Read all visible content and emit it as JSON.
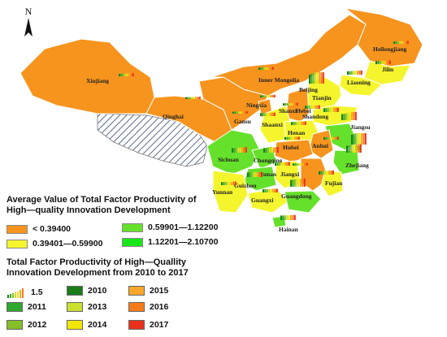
{
  "map": {
    "north_label": "N",
    "provinces": [
      {
        "name": "Xinjiang",
        "class": "c1",
        "values": [
          0.32,
          0.34,
          0.35,
          0.36,
          0.37,
          0.38,
          0.4,
          0.41
        ]
      },
      {
        "name": "Inner Mongolia",
        "class": "c1",
        "values": [
          0.3,
          0.31,
          0.33,
          0.35,
          0.36,
          0.37,
          0.38,
          0.39
        ]
      },
      {
        "name": "Heilongjiang",
        "class": "c1",
        "values": [
          0.3,
          0.32,
          0.33,
          0.34,
          0.35,
          0.36,
          0.37,
          0.38
        ]
      },
      {
        "name": "Jilin",
        "class": "c2",
        "values": [
          0.4,
          0.42,
          0.44,
          0.45,
          0.46,
          0.47,
          0.48,
          0.5
        ]
      },
      {
        "name": "Liaoning",
        "class": "c2",
        "values": [
          0.45,
          0.47,
          0.49,
          0.5,
          0.52,
          0.53,
          0.54,
          0.56
        ]
      },
      {
        "name": "Beijing",
        "class": "c4",
        "values": [
          1.2,
          1.3,
          1.4,
          1.45,
          1.5,
          1.55,
          1.6,
          1.65
        ]
      },
      {
        "name": "Tianjin",
        "class": "c2",
        "values": [
          0.5,
          0.52,
          0.54,
          0.55,
          0.56,
          0.57,
          0.58,
          0.59
        ]
      },
      {
        "name": "Qinghai",
        "class": "c1",
        "values": [
          0.25,
          0.26,
          0.27,
          0.28,
          0.29,
          0.3,
          0.31,
          0.32
        ]
      },
      {
        "name": "Gansu",
        "class": "c1",
        "values": [
          0.26,
          0.27,
          0.28,
          0.29,
          0.3,
          0.31,
          0.32,
          0.33
        ]
      },
      {
        "name": "Ningxia",
        "class": "c1",
        "values": [
          0.27,
          0.28,
          0.29,
          0.3,
          0.31,
          0.32,
          0.33,
          0.34
        ]
      },
      {
        "name": "Shaanxi",
        "class": "c2",
        "values": [
          0.4,
          0.41,
          0.42,
          0.43,
          0.44,
          0.45,
          0.46,
          0.47
        ]
      },
      {
        "name": "Shanxi",
        "class": "c1",
        "values": [
          0.3,
          0.31,
          0.32,
          0.33,
          0.34,
          0.35,
          0.36,
          0.37
        ]
      },
      {
        "name": "Hebei",
        "class": "c2",
        "values": [
          0.4,
          0.41,
          0.42,
          0.43,
          0.44,
          0.45,
          0.46,
          0.47
        ]
      },
      {
        "name": "Shandong",
        "class": "c2",
        "values": [
          0.5,
          0.52,
          0.54,
          0.55,
          0.56,
          0.57,
          0.58,
          0.59
        ]
      },
      {
        "name": "Henan",
        "class": "c2",
        "values": [
          0.4,
          0.41,
          0.42,
          0.43,
          0.44,
          0.45,
          0.46,
          0.48
        ]
      },
      {
        "name": "Jiangsu",
        "class": "c3",
        "values": [
          0.8,
          0.85,
          0.9,
          0.95,
          1.0,
          1.05,
          1.08,
          1.1
        ]
      },
      {
        "name": "Anhui",
        "class": "c1",
        "values": [
          0.33,
          0.34,
          0.35,
          0.36,
          0.37,
          0.38,
          0.39,
          0.39
        ]
      },
      {
        "name": "Hubei",
        "class": "c1",
        "values": [
          0.34,
          0.35,
          0.36,
          0.37,
          0.38,
          0.39,
          0.39,
          0.39
        ]
      },
      {
        "name": "Shanghai",
        "class": "c4",
        "values": [
          1.3,
          1.4,
          1.5,
          1.55,
          1.6,
          1.65,
          1.7,
          1.75
        ]
      },
      {
        "name": "Zhejiang",
        "class": "c3",
        "values": [
          0.9,
          0.95,
          1.0,
          1.02,
          1.05,
          1.08,
          1.1,
          1.12
        ]
      },
      {
        "name": "Sichuan",
        "class": "c3",
        "values": [
          0.6,
          0.62,
          0.64,
          0.66,
          0.68,
          0.7,
          0.72,
          0.74
        ]
      },
      {
        "name": "Chongqing",
        "class": "c3",
        "values": [
          0.6,
          0.63,
          0.65,
          0.67,
          0.69,
          0.71,
          0.73,
          0.75
        ]
      },
      {
        "name": "Hunan",
        "class": "c2",
        "values": [
          0.4,
          0.42,
          0.44,
          0.45,
          0.46,
          0.47,
          0.48,
          0.5
        ]
      },
      {
        "name": "Jiangxi",
        "class": "c1",
        "values": [
          0.3,
          0.31,
          0.32,
          0.33,
          0.34,
          0.35,
          0.36,
          0.37
        ]
      },
      {
        "name": "Fujian",
        "class": "c2",
        "values": [
          0.45,
          0.46,
          0.48,
          0.5,
          0.51,
          0.53,
          0.54,
          0.56
        ]
      },
      {
        "name": "Guizhou",
        "class": "c3",
        "values": [
          0.6,
          0.61,
          0.62,
          0.63,
          0.64,
          0.65,
          0.66,
          0.67
        ]
      },
      {
        "name": "Yunnan",
        "class": "c2",
        "values": [
          0.4,
          0.41,
          0.42,
          0.43,
          0.44,
          0.45,
          0.46,
          0.47
        ]
      },
      {
        "name": "Guangxi",
        "class": "c2",
        "values": [
          0.42,
          0.43,
          0.44,
          0.45,
          0.46,
          0.47,
          0.48,
          0.49
        ]
      },
      {
        "name": "Guangdong",
        "class": "c3",
        "values": [
          0.9,
          0.95,
          1.0,
          1.02,
          1.04,
          1.06,
          1.08,
          1.1
        ]
      },
      {
        "name": "Hainan",
        "class": "c3",
        "values": [
          0.6,
          0.61,
          0.62,
          0.63,
          0.64,
          0.65,
          0.66,
          0.67
        ]
      }
    ]
  },
  "legend1": {
    "title": "Average Value of Total Factor Productivity of High—quality Innovation Development",
    "classes": [
      {
        "label": "< 0.39400",
        "color": "#f7941d"
      },
      {
        "label": "0.39401—0.59900",
        "color": "#f5f52e"
      },
      {
        "label": "0.59901—1.12200",
        "color": "#66e12b"
      },
      {
        "label": "1.12201—2.10700",
        "color": "#19e619"
      }
    ]
  },
  "legend2": {
    "title": "Total Factor Productivity of High—Quallity Innovation Development from 2010 to 2017",
    "scale_label": "1.5",
    "years": [
      {
        "label": "2010",
        "color": "#1a7d1a"
      },
      {
        "label": "2011",
        "color": "#2ea82e"
      },
      {
        "label": "2012",
        "color": "#85bf2a"
      },
      {
        "label": "2013",
        "color": "#c9e02f"
      },
      {
        "label": "2014",
        "color": "#f2e600"
      },
      {
        "label": "2015",
        "color": "#f9a72a"
      },
      {
        "label": "2016",
        "color": "#f57c18"
      },
      {
        "label": "2017",
        "color": "#e9301c"
      }
    ]
  },
  "colors": {
    "c1": "#f7941d",
    "c2": "#f5f52e",
    "c3": "#66e12b",
    "c4": "#19e619",
    "disputed_hatch": "#5a6b8a"
  }
}
